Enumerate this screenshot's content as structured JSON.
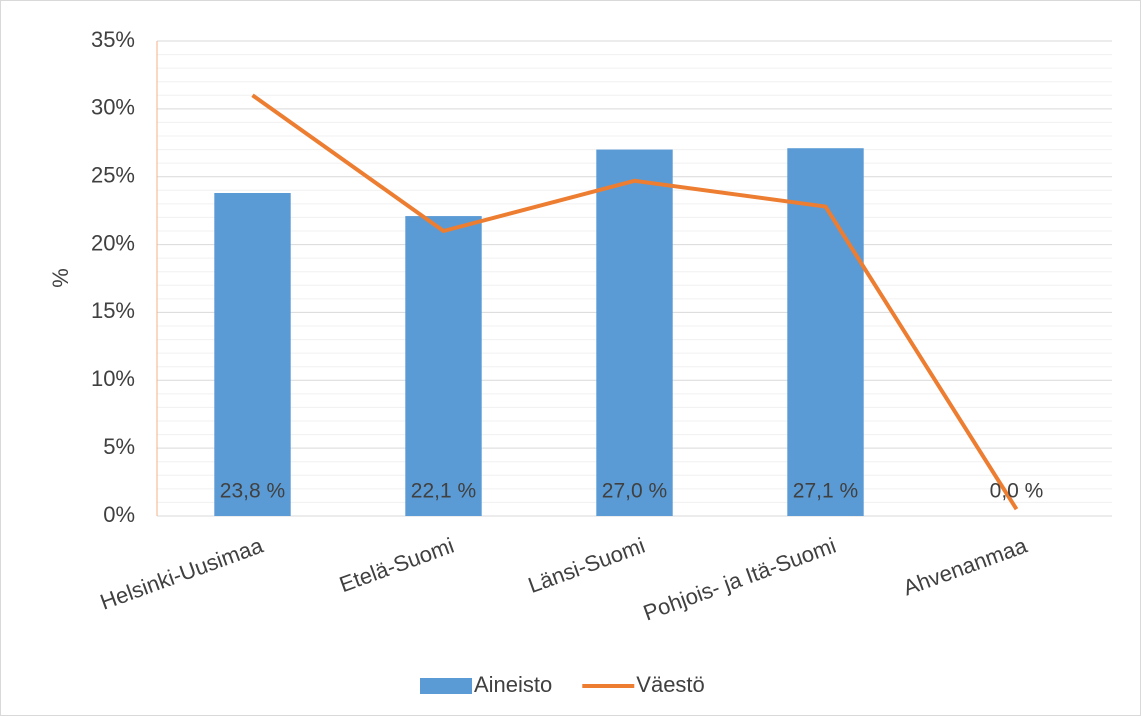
{
  "chart_data": {
    "type": "combo",
    "y_label": "%",
    "categories": [
      "Helsinki-Uusimaa",
      "Etelä-Suomi",
      "Länsi-Suomi",
      "Pohjois- ja Itä-Suomi",
      "Ahvenanmaa"
    ],
    "series": [
      {
        "name": "Aineisto",
        "type": "bar",
        "color": "#5b9bd5",
        "values": [
          23.8,
          22.1,
          27.0,
          27.1,
          0.0
        ],
        "value_labels": [
          "23,8 %",
          "22,1 %",
          "27,0 %",
          "27,1 %",
          "0,0 %"
        ]
      },
      {
        "name": "Väestö",
        "type": "line",
        "color": "#ed7d31",
        "values": [
          31.0,
          21.0,
          24.7,
          22.8,
          0.5
        ]
      }
    ],
    "ylim": [
      0,
      35
    ],
    "yticks": [
      {
        "value": 0,
        "label": "0%"
      },
      {
        "value": 5,
        "label": "5%"
      },
      {
        "value": 10,
        "label": "10%"
      },
      {
        "value": 15,
        "label": "15%"
      },
      {
        "value": 20,
        "label": "20%"
      },
      {
        "value": 25,
        "label": "25%"
      },
      {
        "value": 30,
        "label": "30%"
      },
      {
        "value": 35,
        "label": "35%"
      }
    ],
    "grid": true,
    "minor_grid": true,
    "legend": "bottom"
  }
}
